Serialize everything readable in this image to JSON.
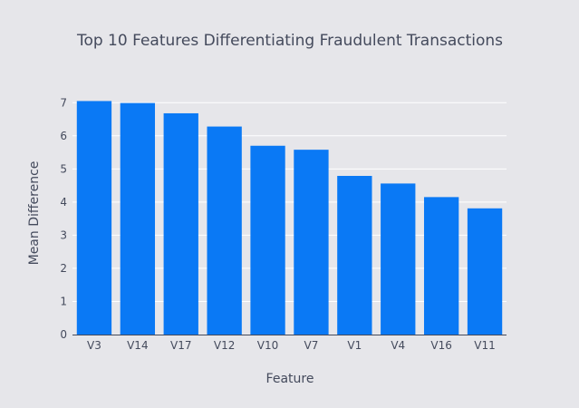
{
  "chart_data": {
    "type": "bar",
    "title": "Top 10 Features Differentiating Fraudulent Transactions",
    "xlabel": "Feature",
    "ylabel": "Mean Difference",
    "categories": [
      "V3",
      "V14",
      "V17",
      "V12",
      "V10",
      "V7",
      "V1",
      "V4",
      "V16",
      "V11"
    ],
    "values": [
      7.05,
      6.99,
      6.68,
      6.28,
      5.7,
      5.58,
      4.79,
      4.56,
      4.15,
      3.81
    ],
    "ylim": [
      0,
      7.5
    ],
    "yticks": [
      0,
      1,
      2,
      3,
      4,
      5,
      6,
      7
    ],
    "grid": true,
    "bar_color": "#0a79f5",
    "plot_background": "#e6e6ea"
  }
}
